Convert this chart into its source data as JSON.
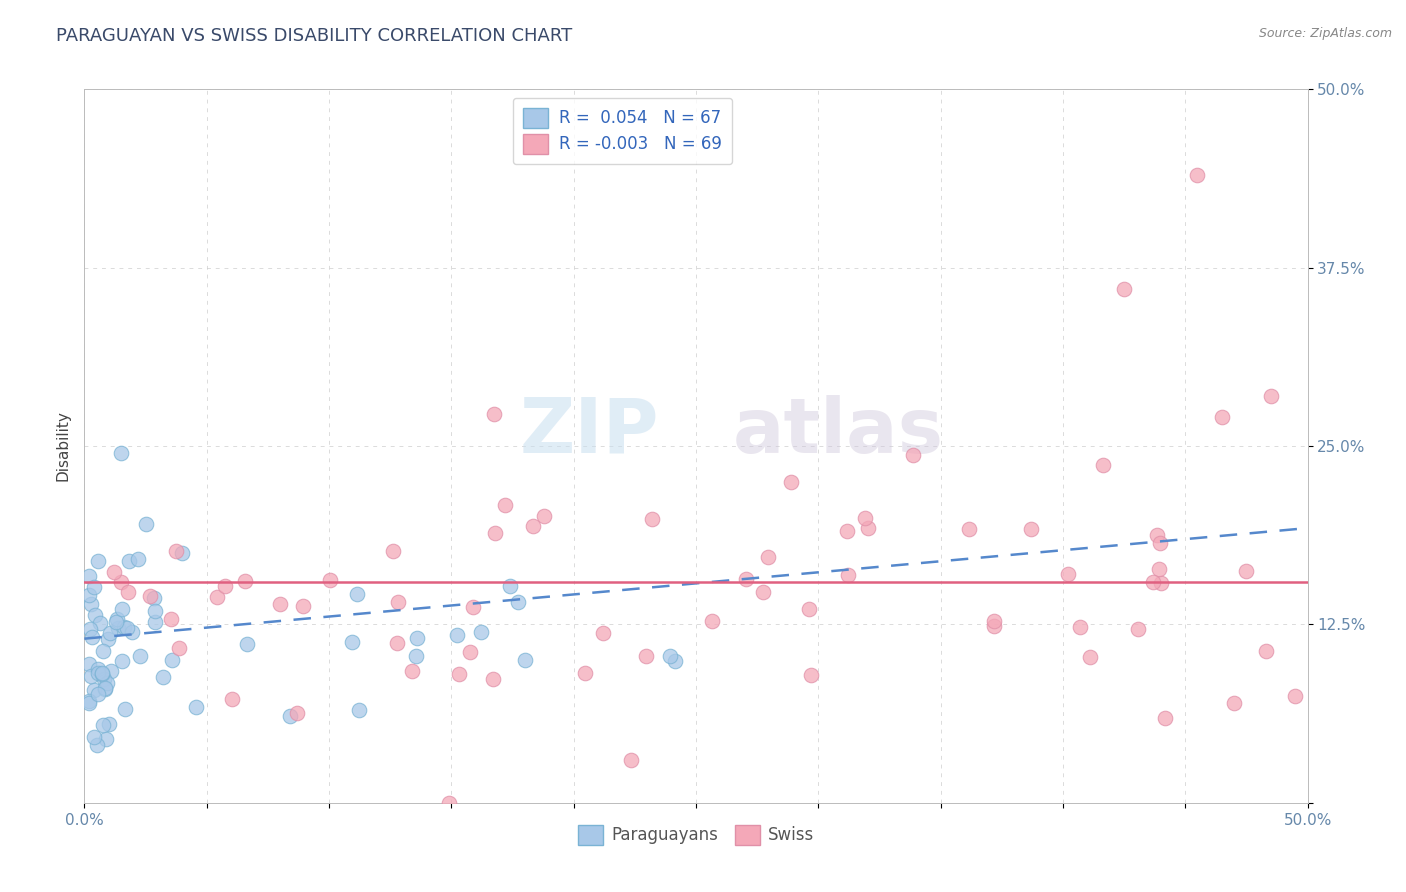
{
  "title": "PARAGUAYAN VS SWISS DISABILITY CORRELATION CHART",
  "source": "Source: ZipAtlas.com",
  "ylabel": "Disability",
  "xlim": [
    0.0,
    0.5
  ],
  "ylim": [
    0.0,
    0.5
  ],
  "color_paraguayan": "#a8c8e8",
  "color_swiss": "#f4a8b8",
  "color_par_edge": "#7ab3d4",
  "color_swiss_edge": "#e090a8",
  "color_trend_par": "#5588cc",
  "color_trend_swiss": "#e06080",
  "watermark_color": "#dce8f2",
  "background_color": "#ffffff",
  "grid_color": "#cccccc",
  "title_color": "#3a4a6a",
  "tick_color": "#6688aa",
  "ylabel_color": "#444444",
  "source_color": "#888888",
  "legend_text_color": "#3366bb",
  "bottom_legend_color": "#555555",
  "par_r": 0.054,
  "swiss_r": -0.003,
  "par_n": 67,
  "swiss_n": 69,
  "par_trend_start_y": 0.118,
  "par_trend_end_y": 0.125,
  "swiss_trend_y": 0.155,
  "ytick_positions": [
    0.0,
    0.125,
    0.25,
    0.375,
    0.5
  ],
  "ytick_labels": [
    "",
    "12.5%",
    "25.0%",
    "37.5%",
    "50.0%"
  ]
}
